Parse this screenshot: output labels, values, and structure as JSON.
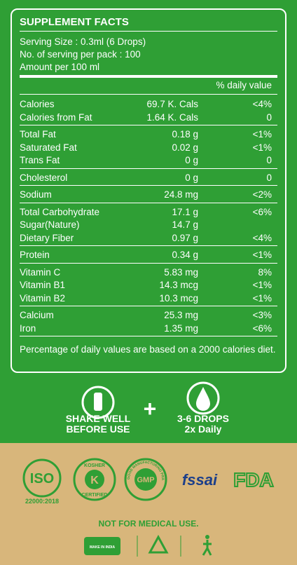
{
  "facts": {
    "title": "SUPPLEMENT FACTS",
    "serving": [
      "Serving Size : 0.3ml (6 Drops)",
      "No. of serving per pack : 100",
      "Amount per 100 ml"
    ],
    "dv_header": "% daily value",
    "groups": [
      [
        [
          "Calories",
          "69.7 K. Cals",
          "<4%"
        ],
        [
          "Calories from Fat",
          "1.64 K. Cals",
          "0"
        ]
      ],
      [
        [
          "Total Fat",
          "0.18 g",
          "<1%"
        ],
        [
          "Saturated Fat",
          "0.02 g",
          "<1%"
        ],
        [
          "Trans Fat",
          "0 g",
          "0"
        ]
      ],
      [
        [
          "Cholesterol",
          "0 g",
          "0"
        ]
      ],
      [
        [
          "Sodium",
          "24.8 mg",
          "<2%"
        ]
      ],
      [
        [
          "Total Carbohydrate",
          "17.1 g",
          "<6%"
        ],
        [
          "Sugar(Nature)",
          "14.7 g"
        ],
        [
          "Dietary Fiber",
          "0.97 g",
          "<4%"
        ]
      ],
      [
        [
          "Protein",
          "0.34 g",
          "<1%"
        ]
      ],
      [
        [
          "Vitamin C",
          "5.83 mg",
          "8%"
        ],
        [
          "Vitamin B1",
          "14.3 mcg",
          "<1%"
        ],
        [
          "Vitamin B2",
          "10.3 mcg",
          "<1%"
        ]
      ],
      [
        [
          "Calcium",
          "25.3 mg",
          "<3%"
        ],
        [
          "Iron",
          "1.35 mg",
          "<6%"
        ]
      ]
    ],
    "footnote": "Percentage of daily values are based on a 2000 calories diet."
  },
  "usage": {
    "shake": [
      "SHAKE WELL",
      "BEFORE USE"
    ],
    "plus": "+",
    "drops": [
      "3-6 DROPS",
      "2x Daily"
    ]
  },
  "badges": {
    "iso": "ISO",
    "iso_code": "22000:2018",
    "kosher_top": "KOSHER",
    "kosher_k": "K",
    "kosher_bottom": "CERTIFIED",
    "gmp": "GMP",
    "gmp_ring": "GOOD MANUFACTURING PRACTICE",
    "fssai": "fssai",
    "fda": "FDA"
  },
  "footer": {
    "notice": "NOT FOR MEDICAL USE.",
    "make_in_india": "MAKE IN INDIA"
  }
}
